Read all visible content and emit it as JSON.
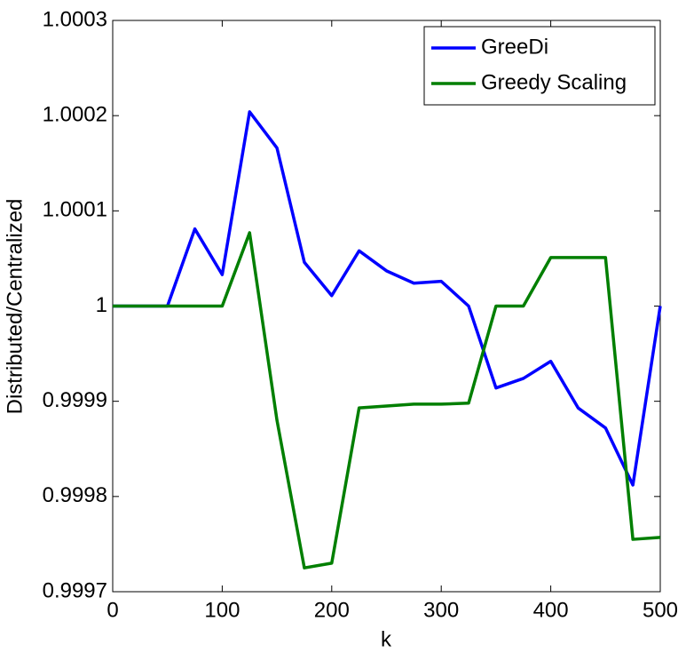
{
  "chart_data": {
    "type": "line",
    "x_label": "k",
    "y_label": "Distributed/Centralized",
    "x": [
      0,
      25,
      50,
      75,
      100,
      125,
      150,
      175,
      200,
      225,
      250,
      275,
      300,
      325,
      350,
      375,
      400,
      425,
      450,
      475,
      500
    ],
    "series": [
      {
        "name": "GreeDi",
        "color": "#0000ff",
        "values": [
          1,
          1,
          1,
          1.000081,
          1.000033,
          1.000204,
          1.000166,
          1.000046,
          1.000011,
          1.000058,
          1.000037,
          1.000024,
          1.000026,
          1,
          0.999914,
          0.999924,
          0.999942,
          0.999893,
          0.999872,
          0.999812,
          1
        ]
      },
      {
        "name": "Greedy Scaling",
        "color": "#007f00",
        "values": [
          1,
          1,
          1,
          1,
          1,
          1.000077,
          0.99988,
          0.999725,
          0.99973,
          0.999893,
          0.999895,
          0.999897,
          0.999897,
          0.999898,
          1,
          1,
          1.000051,
          1.000051,
          1.000051,
          0.999755,
          0.999757
        ]
      }
    ],
    "xlim": [
      0,
      500
    ],
    "xticks": [
      0,
      100,
      200,
      300,
      400,
      500
    ],
    "ylim": [
      0.9997,
      1.0003
    ],
    "yticks": [
      0.9997,
      0.9998,
      0.9999,
      1,
      1.0001,
      1.0002,
      1.0003
    ],
    "legend": "upper right"
  }
}
